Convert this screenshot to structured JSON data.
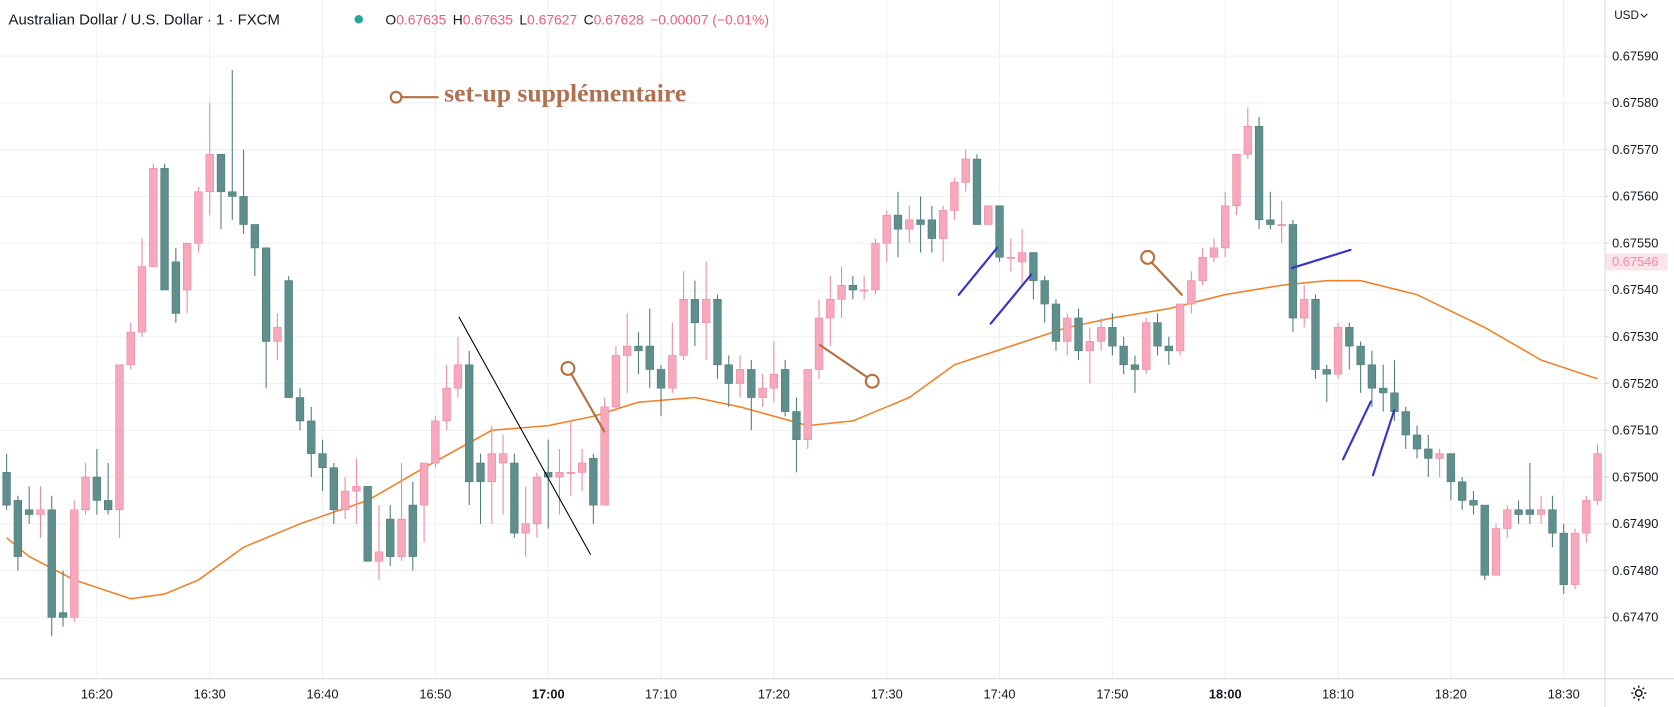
{
  "header": {
    "symbol": "Australian Dollar / U.S. Dollar · 1 · FXCM",
    "ohlc": [
      {
        "key": "O",
        "value": "0.67635"
      },
      {
        "key": "H",
        "value": "0.67635"
      },
      {
        "key": "L",
        "value": "0.67627"
      },
      {
        "key": "C",
        "value": "0.67628"
      }
    ],
    "change": "−0.00007 (−0.01%)",
    "currency": "USD"
  },
  "chart_data": {
    "type": "candlestick",
    "annotation": "set-up supplémentaire",
    "categories": [
      "16:12",
      "16:13",
      "16:14",
      "16:15",
      "16:16",
      "16:17",
      "16:18",
      "16:19",
      "16:20",
      "16:21",
      "16:22",
      "16:23",
      "16:24",
      "16:25",
      "16:26",
      "16:27",
      "16:28",
      "16:29",
      "16:30",
      "16:31",
      "16:32",
      "16:33",
      "16:34",
      "16:35",
      "16:36",
      "16:37",
      "16:38",
      "16:39",
      "16:40",
      "16:41",
      "16:42",
      "16:43",
      "16:44",
      "16:45",
      "16:46",
      "16:47",
      "16:48",
      "16:49",
      "16:50",
      "16:51",
      "16:52",
      "16:53",
      "16:54",
      "16:55",
      "16:56",
      "16:57",
      "16:58",
      "16:59",
      "17:00",
      "17:01",
      "17:02",
      "17:03",
      "17:04",
      "17:05",
      "17:06",
      "17:07",
      "17:08",
      "17:09",
      "17:10",
      "17:11",
      "17:12",
      "17:13",
      "17:14",
      "17:15",
      "17:16",
      "17:17",
      "17:18",
      "17:19",
      "17:20",
      "17:21",
      "17:22",
      "17:23",
      "17:24",
      "17:25",
      "17:26",
      "17:27",
      "17:28",
      "17:29",
      "17:30",
      "17:31",
      "17:32",
      "17:33",
      "17:34",
      "17:35",
      "17:36",
      "17:37",
      "17:38",
      "17:39",
      "17:40",
      "17:41",
      "17:42",
      "17:43",
      "17:44",
      "17:45",
      "17:46",
      "17:47",
      "17:48",
      "17:49",
      "17:50",
      "17:51",
      "17:52",
      "17:53",
      "17:54",
      "17:55",
      "17:56",
      "17:57",
      "17:58",
      "17:59",
      "18:00",
      "18:01",
      "18:02",
      "18:03",
      "18:04",
      "18:05",
      "18:06",
      "18:07",
      "18:08",
      "18:09",
      "18:10",
      "18:11",
      "18:12",
      "18:13",
      "18:14",
      "18:15",
      "18:16",
      "18:17",
      "18:18",
      "18:19",
      "18:20",
      "18:21",
      "18:22",
      "18:23",
      "18:24",
      "18:25",
      "18:26",
      "18:27",
      "18:28",
      "18:29",
      "18:30",
      "18:31",
      "18:32",
      "18:33"
    ],
    "open": [
      0.67501,
      0.67495,
      0.67493,
      0.67492,
      0.67493,
      0.67471,
      0.6747,
      0.67493,
      0.675,
      0.67495,
      0.67493,
      0.67524,
      0.67531,
      0.67545,
      0.67566,
      0.67546,
      0.6754,
      0.6755,
      0.67561,
      0.67569,
      0.67561,
      0.6756,
      0.67554,
      0.67549,
      0.67529,
      0.67542,
      0.67517,
      0.67512,
      0.67505,
      0.67502,
      0.67493,
      0.67497,
      0.67498,
      0.67482,
      0.67491,
      0.67483,
      0.67494,
      0.67494,
      0.67503,
      0.67512,
      0.67519,
      0.67524,
      0.67503,
      0.67499,
      0.67503,
      0.67503,
      0.67488,
      0.6749,
      0.67501,
      0.675,
      0.67501,
      0.67501,
      0.67504,
      0.67494,
      0.67515,
      0.67526,
      0.67528,
      0.67528,
      0.67523,
      0.67519,
      0.67526,
      0.67538,
      0.67533,
      0.67538,
      0.67524,
      0.6752,
      0.67523,
      0.67517,
      0.67519,
      0.67523,
      0.67514,
      0.67508,
      0.67523,
      0.67534,
      0.67538,
      0.67541,
      0.6754,
      0.6754,
      0.6755,
      0.67556,
      0.67553,
      0.67555,
      0.67555,
      0.67551,
      0.67557,
      0.67563,
      0.67568,
      0.67554,
      0.67558,
      0.67547,
      0.67546,
      0.67548,
      0.67542,
      0.67537,
      0.67529,
      0.67534,
      0.67527,
      0.67529,
      0.67532,
      0.67528,
      0.67524,
      0.67523,
      0.67533,
      0.67528,
      0.67527,
      0.67537,
      0.67542,
      0.67547,
      0.67549,
      0.67558,
      0.67569,
      0.67575,
      0.67555,
      0.67554,
      0.67554,
      0.67534,
      0.67538,
      0.67523,
      0.67522,
      0.67532,
      0.67528,
      0.67524,
      0.67519,
      0.67518,
      0.67514,
      0.67509,
      0.67506,
      0.67504,
      0.67505,
      0.67499,
      0.67495,
      0.67494,
      0.67479,
      0.67489,
      0.67493,
      0.67493,
      0.67492,
      0.67493,
      0.67488,
      0.67477,
      0.67488,
      0.67495
    ],
    "high": [
      0.67505,
      0.67496,
      0.67498,
      0.67498,
      0.67496,
      0.6748,
      0.67495,
      0.67503,
      0.67506,
      0.67503,
      0.67524,
      0.67533,
      0.67551,
      0.67567,
      0.67567,
      0.67549,
      0.6755,
      0.67562,
      0.6758,
      0.67569,
      0.67587,
      0.6757,
      0.67554,
      0.67549,
      0.67535,
      0.67543,
      0.67519,
      0.67515,
      0.67508,
      0.67503,
      0.675,
      0.67504,
      0.67498,
      0.67494,
      0.67494,
      0.67503,
      0.67499,
      0.67503,
      0.67513,
      0.67524,
      0.6753,
      0.67527,
      0.67505,
      0.67511,
      0.67509,
      0.67505,
      0.67498,
      0.67501,
      0.67508,
      0.67506,
      0.67512,
      0.67506,
      0.67505,
      0.67517,
      0.67528,
      0.67535,
      0.67531,
      0.67536,
      0.67524,
      0.67533,
      0.67544,
      0.67542,
      0.67546,
      0.67539,
      0.67526,
      0.67526,
      0.67525,
      0.67522,
      0.67529,
      0.67525,
      0.67517,
      0.67523,
      0.67538,
      0.67543,
      0.67545,
      0.67543,
      0.67543,
      0.67551,
      0.67557,
      0.67561,
      0.67558,
      0.6756,
      0.67558,
      0.67558,
      0.67564,
      0.6757,
      0.67569,
      0.67558,
      0.67558,
      0.67551,
      0.67553,
      0.67548,
      0.67543,
      0.67538,
      0.67535,
      0.67536,
      0.67532,
      0.67534,
      0.67535,
      0.6753,
      0.67526,
      0.67534,
      0.67535,
      0.6753,
      0.67537,
      0.67544,
      0.67549,
      0.67551,
      0.67561,
      0.67569,
      0.67579,
      0.67577,
      0.67561,
      0.67559,
      0.67555,
      0.67541,
      0.67539,
      0.67524,
      0.67533,
      0.67533,
      0.67529,
      0.67527,
      0.67524,
      0.67525,
      0.67515,
      0.67511,
      0.67509,
      0.67506,
      0.67505,
      0.675,
      0.67497,
      0.67494,
      0.6749,
      0.67494,
      0.67495,
      0.67503,
      0.67496,
      0.67496,
      0.6749,
      0.67489,
      0.67496,
      0.67507
    ],
    "low": [
      0.67493,
      0.6748,
      0.6749,
      0.67487,
      0.67466,
      0.67468,
      0.67469,
      0.67492,
      0.67492,
      0.67492,
      0.67487,
      0.67523,
      0.6753,
      0.67545,
      0.6754,
      0.67533,
      0.67535,
      0.67548,
      0.67556,
      0.67553,
      0.67555,
      0.67552,
      0.67543,
      0.67519,
      0.67525,
      0.67517,
      0.6751,
      0.675,
      0.67497,
      0.6749,
      0.67491,
      0.6749,
      0.67482,
      0.67478,
      0.67481,
      0.67482,
      0.6748,
      0.67486,
      0.67502,
      0.6751,
      0.67517,
      0.67494,
      0.6749,
      0.6749,
      0.67492,
      0.67487,
      0.67483,
      0.67487,
      0.67489,
      0.67492,
      0.67496,
      0.67497,
      0.6749,
      0.67494,
      0.67514,
      0.67518,
      0.67522,
      0.67519,
      0.67513,
      0.67518,
      0.67525,
      0.67528,
      0.67525,
      0.67521,
      0.67515,
      0.67517,
      0.6751,
      0.67515,
      0.67516,
      0.67513,
      0.67501,
      0.67506,
      0.67521,
      0.67528,
      0.67534,
      0.67538,
      0.67538,
      0.67539,
      0.67546,
      0.67547,
      0.6755,
      0.67548,
      0.67548,
      0.67546,
      0.67555,
      0.67561,
      0.67554,
      0.67554,
      0.67546,
      0.67544,
      0.67541,
      0.67538,
      0.67533,
      0.67527,
      0.67526,
      0.67525,
      0.6752,
      0.67527,
      0.67526,
      0.67522,
      0.67518,
      0.67522,
      0.67526,
      0.67524,
      0.67526,
      0.67535,
      0.67541,
      0.67546,
      0.67547,
      0.67556,
      0.67568,
      0.67553,
      0.67553,
      0.6755,
      0.67531,
      0.67532,
      0.67521,
      0.67516,
      0.67521,
      0.67523,
      0.67518,
      0.67515,
      0.67514,
      0.67512,
      0.67506,
      0.67504,
      0.675,
      0.675,
      0.67495,
      0.67493,
      0.67492,
      0.67478,
      0.67479,
      0.67487,
      0.6749,
      0.6749,
      0.6749,
      0.67485,
      0.67475,
      0.67476,
      0.67486,
      0.67494
    ],
    "close": [
      0.67494,
      0.67483,
      0.67492,
      0.67493,
      0.6747,
      0.6747,
      0.67493,
      0.675,
      0.67495,
      0.67493,
      0.67524,
      0.67531,
      0.67545,
      0.67566,
      0.6754,
      0.67535,
      0.6755,
      0.67561,
      0.67569,
      0.67561,
      0.6756,
      0.67554,
      0.67549,
      0.67529,
      0.67532,
      0.67517,
      0.67512,
      0.67505,
      0.67502,
      0.67493,
      0.67497,
      0.67498,
      0.67482,
      0.67484,
      0.67483,
      0.67491,
      0.67483,
      0.67503,
      0.67512,
      0.67519,
      0.67524,
      0.67499,
      0.67499,
      0.67505,
      0.67505,
      0.67488,
      0.6749,
      0.675,
      0.675,
      0.67501,
      0.67501,
      0.67503,
      0.67494,
      0.67515,
      0.67526,
      0.67528,
      0.67527,
      0.67523,
      0.67519,
      0.67526,
      0.67538,
      0.67533,
      0.67538,
      0.67524,
      0.6752,
      0.67523,
      0.67517,
      0.67519,
      0.67522,
      0.67514,
      0.67508,
      0.67523,
      0.67534,
      0.67538,
      0.67541,
      0.6754,
      0.6754,
      0.6755,
      0.67556,
      0.67553,
      0.67555,
      0.67554,
      0.67551,
      0.67557,
      0.67563,
      0.67568,
      0.67554,
      0.67558,
      0.67547,
      0.67547,
      0.67548,
      0.67542,
      0.67537,
      0.67529,
      0.67534,
      0.67527,
      0.67529,
      0.67532,
      0.67528,
      0.67524,
      0.67523,
      0.67533,
      0.67528,
      0.67527,
      0.67537,
      0.67542,
      0.67547,
      0.67549,
      0.67558,
      0.67569,
      0.67575,
      0.67555,
      0.67554,
      0.67554,
      0.67534,
      0.67538,
      0.67523,
      0.67522,
      0.67532,
      0.67528,
      0.67524,
      0.67519,
      0.67518,
      0.67514,
      0.67509,
      0.67506,
      0.67504,
      0.67505,
      0.67499,
      0.67495,
      0.67494,
      0.67479,
      0.67489,
      0.67493,
      0.67492,
      0.67492,
      0.67493,
      0.67488,
      0.67477,
      0.67488,
      0.67495,
      0.67505
    ],
    "up_color": "#f7a8bc",
    "down_color": "#5f8f8c",
    "moving_average": {
      "color": "#f57c1f",
      "x": [
        "16:12",
        "16:14",
        "16:18",
        "16:23",
        "16:26",
        "16:29",
        "16:33",
        "16:38",
        "16:44",
        "16:49",
        "16:55",
        "17:00",
        "17:04",
        "17:08",
        "17:13",
        "17:17",
        "17:23",
        "17:27",
        "17:32",
        "17:36",
        "17:41",
        "17:46",
        "17:50",
        "17:55",
        "18:00",
        "18:05",
        "18:09",
        "18:12",
        "18:17",
        "18:23",
        "18:28",
        "18:33"
      ],
      "values": [
        0.67487,
        0.67483,
        0.67478,
        0.67474,
        0.67475,
        0.67478,
        0.67485,
        0.6749,
        0.67495,
        0.67502,
        0.6751,
        0.67511,
        0.67513,
        0.67516,
        0.67517,
        0.67515,
        0.67511,
        0.67512,
        0.67517,
        0.67524,
        0.67528,
        0.67532,
        0.67534,
        0.67536,
        0.67539,
        0.67541,
        0.67542,
        0.67542,
        0.67539,
        0.67532,
        0.67525,
        0.67521
      ]
    },
    "last_price": {
      "value": 0.67546,
      "label": "0.67546"
    },
    "ylim": [
      0.67457,
      0.67602
    ],
    "yticks": [
      {
        "value": 0.6759,
        "label": "0.67590"
      },
      {
        "value": 0.6758,
        "label": "0.67580"
      },
      {
        "value": 0.6757,
        "label": "0.67570"
      },
      {
        "value": 0.6756,
        "label": "0.67560"
      },
      {
        "value": 0.6755,
        "label": "0.67550"
      },
      {
        "value": 0.6754,
        "label": "0.67540"
      },
      {
        "value": 0.6753,
        "label": "0.67530"
      },
      {
        "value": 0.6752,
        "label": "0.67520"
      },
      {
        "value": 0.6751,
        "label": "0.67510"
      },
      {
        "value": 0.675,
        "label": "0.67500"
      },
      {
        "value": 0.6749,
        "label": "0.67490"
      },
      {
        "value": 0.6748,
        "label": "0.67480"
      },
      {
        "value": 0.6747,
        "label": "0.67470"
      }
    ],
    "xticks": [
      "16:20",
      "16:30",
      "16:40",
      "16:50",
      "17:00",
      "17:10",
      "17:20",
      "17:30",
      "17:40",
      "17:50",
      "18:00",
      "18:10",
      "18:20",
      "18:30"
    ],
    "grid": true
  }
}
